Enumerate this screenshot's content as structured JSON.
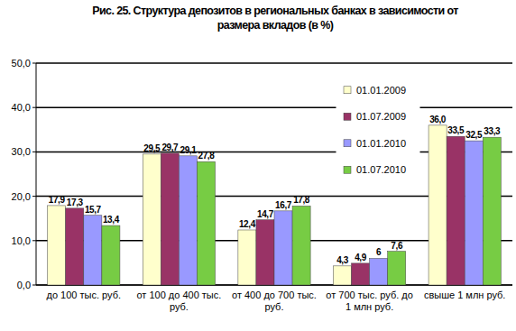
{
  "chart_data": {
    "type": "bar",
    "title": "Рис. 25. Структура депозитов в региональных банках в зависимости от размера вкладов (в %)",
    "categories": [
      "до 100 тыс. руб.",
      "от 100 до 400 тыс. руб.",
      "от 400 до 700 тыс. руб.",
      "от 700 тыс. руб. до 1 млн руб.",
      "свыше 1 млн руб."
    ],
    "series": [
      {
        "name": "01.01.2009",
        "color": "#ffffcc",
        "values": [
          17.9,
          29.5,
          12.4,
          4.3,
          36.0
        ],
        "value_labels": [
          "17,9",
          "29,5",
          "12,4",
          "4,3",
          "36,0"
        ]
      },
      {
        "name": "01.07.2009",
        "color": "#993366",
        "values": [
          17.3,
          29.7,
          14.7,
          4.9,
          33.5
        ],
        "value_labels": [
          "17,3",
          "29,7",
          "14,7",
          "4,9",
          "33,5"
        ]
      },
      {
        "name": "01.01.2010",
        "color": "#9999ff",
        "values": [
          15.7,
          29.1,
          16.7,
          6,
          32.5
        ],
        "value_labels": [
          "15,7",
          "29,1",
          "16,7",
          "6",
          "32,5"
        ]
      },
      {
        "name": "01.07.2010",
        "color": "#77cc44",
        "values": [
          13.4,
          27.8,
          17.8,
          7.6,
          33.3
        ],
        "value_labels": [
          "13,4",
          "27,8",
          "17,8",
          "7,6",
          "33,3"
        ]
      }
    ],
    "ylim": [
      0,
      50
    ],
    "yticks": [
      {
        "value": 0,
        "label": "0,0"
      },
      {
        "value": 10,
        "label": "10,0"
      },
      {
        "value": 20,
        "label": "20,0"
      },
      {
        "value": 30,
        "label": "30,0"
      },
      {
        "value": 40,
        "label": "40,0"
      },
      {
        "value": 50,
        "label": "50,0"
      }
    ],
    "grid": true,
    "legend": "upper right",
    "data_labels": true
  }
}
